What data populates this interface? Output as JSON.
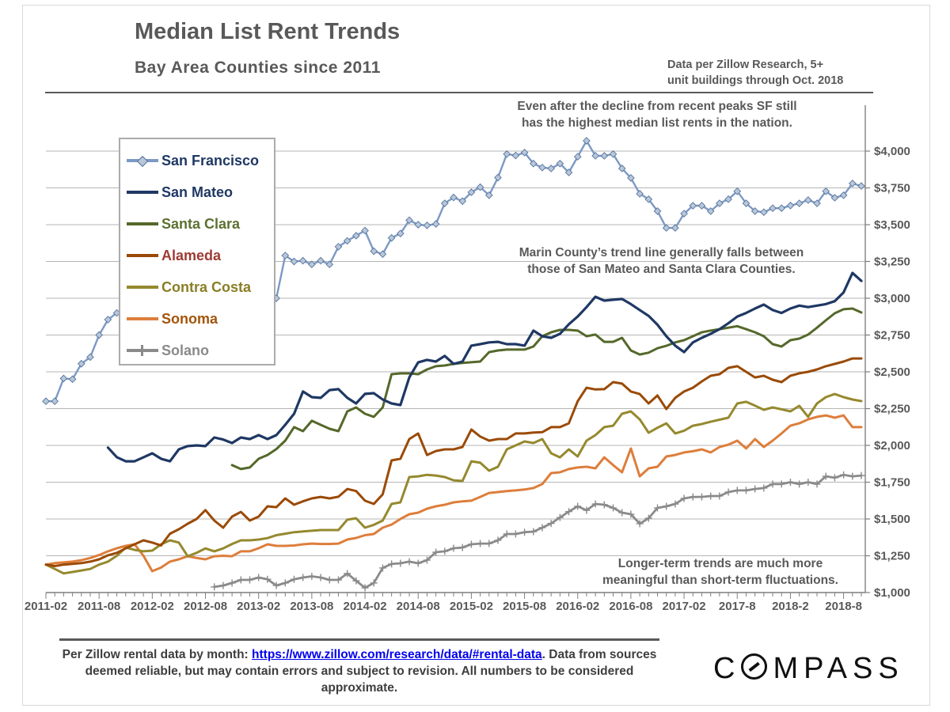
{
  "header": {
    "title": "Median List Rent Trends",
    "subtitle": "Bay Area Counties since 2011",
    "source_note_line1": "Data per Zillow Research, 5+",
    "source_note_line2": "unit buildings through Oct. 2018"
  },
  "annotations": [
    {
      "line1": "Even after the decline from recent peaks SF still",
      "line2": "has the highest median list rents in the nation."
    },
    {
      "line1": "Marin County’s  trend line generally falls between",
      "line2": "those of San Mateo and Santa Clara Counties."
    },
    {
      "line1": "Longer-term trends are much more",
      "line2": "meaningful than short-term  fluctuations."
    }
  ],
  "footer": {
    "text_before_link": "Per Zillow rental data by month: ",
    "link_text": "https://www.zillow.com/research/data/#rental-data",
    "text_after_link": ". Data from sources  deemed reliable, but may contain errors and subject to revision. All numbers to be considered approximate.",
    "logo_c": "C",
    "logo_rest": "MPASS"
  },
  "chart_data": {
    "type": "line",
    "title": "Median List Rent Trends",
    "subtitle": "Bay Area Counties since 2011",
    "x_unit": "month",
    "x_start": "2011-02",
    "x_end": "2018-10",
    "n_points": 93,
    "x_tick_labels": [
      "2011-02",
      "2011-08",
      "2012-02",
      "2012-08",
      "2013-02",
      "2013-08",
      "2014-02",
      "2014-08",
      "2015-02",
      "2015-08",
      "2016-02",
      "2016-08",
      "2017-02",
      "2017-8",
      "2018-2",
      "2018-8"
    ],
    "x_tick_every_months": 6,
    "ylim": [
      1000,
      4270
    ],
    "y_ticks": [
      1000,
      1250,
      1500,
      1750,
      2000,
      2250,
      2500,
      2750,
      3000,
      3250,
      3500,
      3750,
      4000
    ],
    "y_tick_labels": [
      "$1,000",
      "$1,250",
      "$1,500",
      "$1,750",
      "$2,000",
      "$2,250",
      "$2,500",
      "$2,750",
      "$3,000",
      "$3,250",
      "$3,500",
      "$3,750",
      "$4,000"
    ],
    "grid": true,
    "legend_position": "upper-left",
    "colors": {
      "grid": "#B5B5B5",
      "axis": "#7F7F7F",
      "tick_text": "#595959"
    },
    "series": [
      {
        "name": "San Francisco",
        "color": "#7C99C4",
        "text_color": "#1F3864",
        "marker": "diamond",
        "marker_fill": "#B9C7D9",
        "marker_edge": "#54749E",
        "width": 2.4,
        "values": [
          2300,
          2300,
          2455,
          2450,
          2555,
          2600,
          2750,
          2855,
          2900,
          2920,
          2950,
          2970,
          2990,
          3010,
          3040,
          3070,
          3100,
          3130,
          3160,
          3180,
          3150,
          3120,
          3080,
          3040,
          3040,
          2880,
          3000,
          3290,
          3250,
          3255,
          3230,
          3255,
          3230,
          3350,
          3390,
          3425,
          3460,
          3320,
          3300,
          3410,
          3440,
          3530,
          3500,
          3495,
          3505,
          3645,
          3685,
          3660,
          3720,
          3755,
          3700,
          3820,
          3980,
          3970,
          3990,
          3915,
          3888,
          3882,
          3915,
          3855,
          3962,
          4070,
          3968,
          3968,
          3980,
          3882,
          3818,
          3710,
          3673,
          3592,
          3478,
          3478,
          3575,
          3629,
          3629,
          3592,
          3645,
          3673,
          3727,
          3645,
          3592,
          3585,
          3612,
          3612,
          3630,
          3645,
          3667,
          3645,
          3727,
          3683,
          3700,
          3780,
          3763
        ]
      },
      {
        "name": "San Mateo",
        "color": "#1F3864",
        "text_color": "#1F3864",
        "marker": "none",
        "width": 3.2,
        "values": [
          null,
          null,
          null,
          null,
          null,
          null,
          null,
          1985,
          1920,
          1892,
          1892,
          1919,
          1946,
          1909,
          1892,
          1973,
          1995,
          2000,
          1995,
          2054,
          2040,
          2016,
          2054,
          2043,
          2070,
          2043,
          2070,
          2140,
          2215,
          2366,
          2328,
          2323,
          2376,
          2382,
          2323,
          2285,
          2350,
          2355,
          2312,
          2285,
          2274,
          2462,
          2564,
          2581,
          2570,
          2608,
          2554,
          2570,
          2678,
          2688,
          2700,
          2704,
          2688,
          2688,
          2678,
          2780,
          2742,
          2731,
          2758,
          2823,
          2876,
          2940,
          3010,
          2984,
          2990,
          2995,
          2960,
          2920,
          2880,
          2820,
          2742,
          2678,
          2634,
          2700,
          2731,
          2758,
          2790,
          2830,
          2876,
          2900,
          2930,
          2957,
          2920,
          2900,
          2930,
          2950,
          2940,
          2950,
          2960,
          2980,
          3040,
          3172,
          3118
        ]
      },
      {
        "name": "Santa Clara",
        "color": "#55682B",
        "text_color": "#5D7031",
        "marker": "none",
        "width": 3,
        "values": [
          null,
          null,
          null,
          null,
          null,
          null,
          null,
          null,
          null,
          null,
          null,
          null,
          null,
          null,
          null,
          null,
          null,
          null,
          null,
          null,
          null,
          1866,
          1839,
          1850,
          1909,
          1935,
          1975,
          2032,
          2124,
          2097,
          2167,
          2140,
          2113,
          2097,
          2231,
          2258,
          2215,
          2194,
          2258,
          2484,
          2489,
          2489,
          2484,
          2516,
          2538,
          2543,
          2554,
          2560,
          2565,
          2570,
          2634,
          2645,
          2651,
          2651,
          2651,
          2672,
          2742,
          2769,
          2785,
          2785,
          2780,
          2742,
          2753,
          2704,
          2704,
          2731,
          2645,
          2618,
          2630,
          2660,
          2677,
          2700,
          2715,
          2742,
          2769,
          2780,
          2790,
          2800,
          2810,
          2790,
          2769,
          2742,
          2688,
          2672,
          2715,
          2726,
          2753,
          2800,
          2850,
          2898,
          2925,
          2930,
          2903
        ]
      },
      {
        "name": "Alameda",
        "color": "#9A4A06",
        "text_color": "#9E3B33",
        "marker": "none",
        "width": 3,
        "values": [
          1190,
          1180,
          1190,
          1195,
          1200,
          1210,
          1226,
          1253,
          1270,
          1300,
          1328,
          1355,
          1340,
          1320,
          1400,
          1430,
          1468,
          1500,
          1560,
          1489,
          1441,
          1516,
          1548,
          1489,
          1516,
          1586,
          1580,
          1640,
          1597,
          1620,
          1640,
          1650,
          1640,
          1651,
          1704,
          1690,
          1624,
          1602,
          1667,
          1898,
          1909,
          2043,
          2081,
          1935,
          1962,
          1973,
          1973,
          1989,
          2108,
          2060,
          2032,
          2043,
          2043,
          2081,
          2081,
          2087,
          2090,
          2124,
          2124,
          2150,
          2300,
          2392,
          2380,
          2382,
          2430,
          2420,
          2366,
          2349,
          2285,
          2339,
          2247,
          2323,
          2366,
          2392,
          2435,
          2473,
          2484,
          2527,
          2538,
          2500,
          2462,
          2473,
          2446,
          2430,
          2473,
          2490,
          2500,
          2516,
          2538,
          2554,
          2570,
          2591,
          2591
        ]
      },
      {
        "name": "Contra Costa",
        "color": "#95892E",
        "text_color": "#8A7E26",
        "marker": "none",
        "width": 3,
        "values": [
          1190,
          1160,
          1130,
          1140,
          1150,
          1160,
          1190,
          1210,
          1250,
          1306,
          1290,
          1280,
          1285,
          1328,
          1355,
          1340,
          1247,
          1270,
          1300,
          1280,
          1300,
          1330,
          1355,
          1355,
          1360,
          1370,
          1390,
          1400,
          1410,
          1415,
          1420,
          1425,
          1425,
          1425,
          1495,
          1505,
          1441,
          1460,
          1489,
          1602,
          1613,
          1785,
          1790,
          1800,
          1795,
          1785,
          1763,
          1758,
          1892,
          1882,
          1828,
          1855,
          1973,
          2000,
          2027,
          2016,
          2043,
          1946,
          1919,
          1973,
          1925,
          2032,
          2070,
          2124,
          2134,
          2215,
          2231,
          2177,
          2086,
          2120,
          2150,
          2081,
          2100,
          2134,
          2145,
          2161,
          2175,
          2188,
          2285,
          2296,
          2270,
          2242,
          2258,
          2245,
          2231,
          2269,
          2194,
          2285,
          2328,
          2349,
          2328,
          2312,
          2301
        ]
      },
      {
        "name": "Sonoma",
        "color": "#DD7E3B",
        "text_color": "#A3540A",
        "marker": "none",
        "width": 3,
        "values": [
          1190,
          1200,
          1205,
          1210,
          1220,
          1235,
          1255,
          1280,
          1301,
          1317,
          1328,
          1250,
          1145,
          1170,
          1210,
          1226,
          1247,
          1235,
          1226,
          1247,
          1250,
          1247,
          1280,
          1280,
          1301,
          1328,
          1317,
          1317,
          1320,
          1328,
          1333,
          1330,
          1330,
          1333,
          1360,
          1371,
          1390,
          1398,
          1441,
          1462,
          1500,
          1532,
          1543,
          1570,
          1586,
          1597,
          1613,
          1620,
          1624,
          1650,
          1677,
          1683,
          1690,
          1694,
          1700,
          1710,
          1737,
          1812,
          1817,
          1839,
          1850,
          1855,
          1844,
          1919,
          1866,
          1817,
          1979,
          1790,
          1844,
          1855,
          1925,
          1935,
          1952,
          1960,
          1973,
          1952,
          1989,
          2005,
          2032,
          1979,
          2043,
          1989,
          2032,
          2081,
          2134,
          2150,
          2177,
          2194,
          2204,
          2188,
          2204,
          2124,
          2124
        ]
      },
      {
        "name": "Solano",
        "color": "#8A8A8A",
        "text_color": "#8A8A8A",
        "marker": "plus",
        "width": 2.8,
        "values": [
          null,
          null,
          null,
          null,
          null,
          null,
          null,
          null,
          null,
          null,
          null,
          null,
          null,
          null,
          null,
          null,
          null,
          null,
          null,
          1038,
          1048,
          1065,
          1086,
          1086,
          1102,
          1090,
          1048,
          1065,
          1090,
          1102,
          1110,
          1102,
          1086,
          1086,
          1129,
          1080,
          1032,
          1065,
          1167,
          1194,
          1199,
          1210,
          1199,
          1220,
          1274,
          1280,
          1301,
          1306,
          1328,
          1333,
          1333,
          1355,
          1398,
          1398,
          1410,
          1414,
          1441,
          1470,
          1510,
          1550,
          1586,
          1559,
          1602,
          1597,
          1575,
          1543,
          1532,
          1468,
          1505,
          1575,
          1586,
          1602,
          1640,
          1650,
          1650,
          1656,
          1656,
          1683,
          1694,
          1694,
          1704,
          1710,
          1737,
          1737,
          1750,
          1737,
          1750,
          1737,
          1790,
          1780,
          1800,
          1790,
          1795
        ]
      }
    ]
  }
}
